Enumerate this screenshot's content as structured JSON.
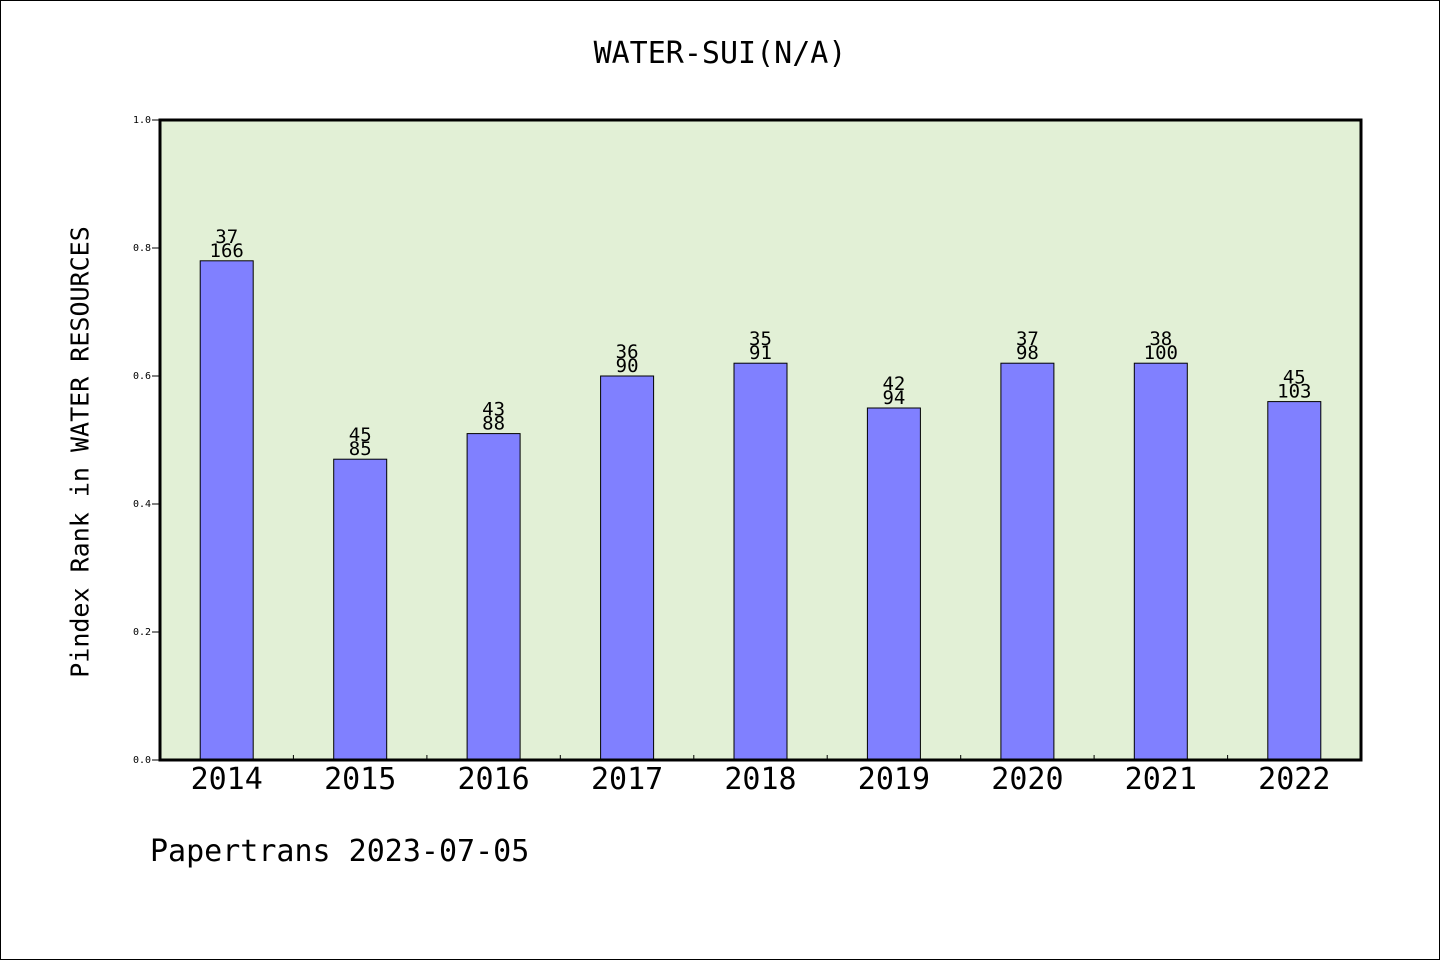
{
  "chart_data": {
    "type": "bar",
    "title": "WATER-SUI(N/A)",
    "ylabel": "Pindex Rank in WATER RESOURCES",
    "xlabel": "",
    "categories": [
      "2014",
      "2015",
      "2016",
      "2017",
      "2018",
      "2019",
      "2020",
      "2021",
      "2022"
    ],
    "values": [
      0.78,
      0.47,
      0.51,
      0.6,
      0.62,
      0.55,
      0.62,
      0.62,
      0.56
    ],
    "label_top": [
      "37",
      "45",
      "43",
      "36",
      "35",
      "42",
      "37",
      "38",
      "45"
    ],
    "label_bottom": [
      "166",
      "85",
      "88",
      "90",
      "91",
      "94",
      "98",
      "100",
      "103"
    ],
    "ylim": [
      0,
      1.0
    ],
    "yticks": [
      "0.0",
      "0.2",
      "0.4",
      "0.6",
      "0.8",
      "1.0"
    ],
    "ytick_values": [
      0.0,
      0.2,
      0.4,
      0.6,
      0.8,
      1.0
    ],
    "grid": false,
    "colors": {
      "plot_background": "#e2f0d6",
      "bar_fill": "#8080ff",
      "bar_edge": "#000000"
    }
  },
  "footer": "Papertrans 2023-07-05"
}
